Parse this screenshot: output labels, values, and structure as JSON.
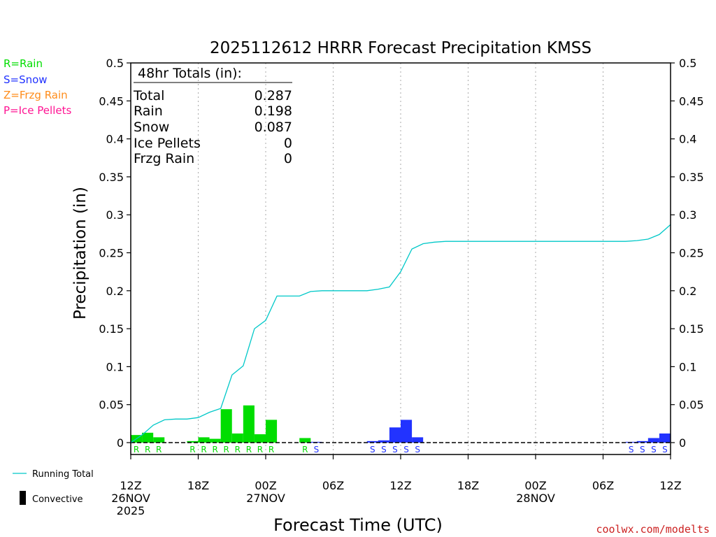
{
  "chart_data": {
    "type": "bar",
    "title": "2025112612 HRRR Forecast Precipitation KMSS",
    "xlabel": "Forecast Time (UTC)",
    "ylabel": "Precipitation (in)",
    "ylim": [
      0,
      0.5
    ],
    "xlim_hours": [
      0,
      48
    ],
    "y_ticks": [
      "0.5",
      "0.45",
      "0.4",
      "0.35",
      "0.3",
      "0.25",
      "0.2",
      "0.15",
      "0.1",
      "0.05",
      "0"
    ],
    "x_ticks": [
      {
        "hour": 0,
        "lines": [
          "12Z",
          "26NOV",
          "2025"
        ]
      },
      {
        "hour": 6,
        "lines": [
          "18Z"
        ]
      },
      {
        "hour": 12,
        "lines": [
          "00Z",
          "27NOV"
        ]
      },
      {
        "hour": 18,
        "lines": [
          "06Z"
        ]
      },
      {
        "hour": 24,
        "lines": [
          "12Z"
        ]
      },
      {
        "hour": 30,
        "lines": [
          "18Z"
        ]
      },
      {
        "hour": 36,
        "lines": [
          "00Z",
          "28NOV"
        ]
      },
      {
        "hour": 42,
        "lines": [
          "06Z"
        ]
      },
      {
        "hour": 48,
        "lines": [
          "12Z"
        ]
      }
    ],
    "grid": "vertical dotted at 6-hour ticks",
    "bars": [
      {
        "hour": 1,
        "value": 0.01,
        "type": "R"
      },
      {
        "hour": 2,
        "value": 0.013,
        "type": "R"
      },
      {
        "hour": 3,
        "value": 0.007,
        "type": "R"
      },
      {
        "hour": 6,
        "value": 0.002,
        "type": "R"
      },
      {
        "hour": 7,
        "value": 0.007,
        "type": "R"
      },
      {
        "hour": 8,
        "value": 0.005,
        "type": "R"
      },
      {
        "hour": 9,
        "value": 0.044,
        "type": "R"
      },
      {
        "hour": 10,
        "value": 0.012,
        "type": "R"
      },
      {
        "hour": 11,
        "value": 0.049,
        "type": "R"
      },
      {
        "hour": 12,
        "value": 0.011,
        "type": "R"
      },
      {
        "hour": 13,
        "value": 0.03,
        "type": "R"
      },
      {
        "hour": 16,
        "value": 0.006,
        "type": "R"
      },
      {
        "hour": 17,
        "value": 0.001,
        "type": "S"
      },
      {
        "hour": 22,
        "value": 0.002,
        "type": "S"
      },
      {
        "hour": 23,
        "value": 0.003,
        "type": "S"
      },
      {
        "hour": 24,
        "value": 0.02,
        "type": "S"
      },
      {
        "hour": 25,
        "value": 0.03,
        "type": "S"
      },
      {
        "hour": 26,
        "value": 0.007,
        "type": "S"
      },
      {
        "hour": 45,
        "value": 0.001,
        "type": "S"
      },
      {
        "hour": 46,
        "value": 0.002,
        "type": "S"
      },
      {
        "hour": 47,
        "value": 0.006,
        "type": "S"
      },
      {
        "hour": 48,
        "value": 0.012,
        "type": "S"
      }
    ],
    "running_total": {
      "name": "Running Total",
      "x": [
        0,
        1,
        2,
        3,
        4,
        5,
        6,
        7,
        8,
        9,
        10,
        11,
        12,
        13,
        14,
        15,
        16,
        17,
        18,
        19,
        20,
        21,
        22,
        23,
        24,
        25,
        26,
        27,
        28,
        44,
        45,
        46,
        47,
        48
      ],
      "y": [
        0.0,
        0.01,
        0.023,
        0.03,
        0.031,
        0.031,
        0.033,
        0.04,
        0.045,
        0.089,
        0.101,
        0.15,
        0.161,
        0.193,
        0.193,
        0.193,
        0.199,
        0.2,
        0.2,
        0.2,
        0.2,
        0.2,
        0.202,
        0.205,
        0.225,
        0.255,
        0.262,
        0.264,
        0.265,
        0.265,
        0.266,
        0.268,
        0.274,
        0.287
      ]
    },
    "totals_box": {
      "heading": "48hr Totals (in):",
      "rows": [
        {
          "label": "Total",
          "value": "0.287"
        },
        {
          "label": "Rain",
          "value": "0.198"
        },
        {
          "label": "Snow",
          "value": "0.087"
        },
        {
          "label": "Ice Pellets",
          "value": "0"
        },
        {
          "label": "Frzg Rain",
          "value": "0"
        }
      ]
    },
    "type_legend": [
      {
        "text": "R=Rain",
        "color": "#00dd00"
      },
      {
        "text": "S=Snow",
        "color": "#2233ff"
      },
      {
        "text": "Z=Frzg Rain",
        "color": "#ff8c1a"
      },
      {
        "text": "P=Ice Pellets",
        "color": "#ff1493"
      }
    ],
    "bottom_legend": [
      {
        "text": "Running Total",
        "kind": "line",
        "color": "#00c8c8"
      },
      {
        "text": "Convective",
        "kind": "bar",
        "color": "#000000"
      }
    ],
    "colors": {
      "rain": "#00dd00",
      "snow": "#2233ff",
      "running_total": "#00c8c8"
    },
    "credit": "coolwx.com/modelts"
  }
}
